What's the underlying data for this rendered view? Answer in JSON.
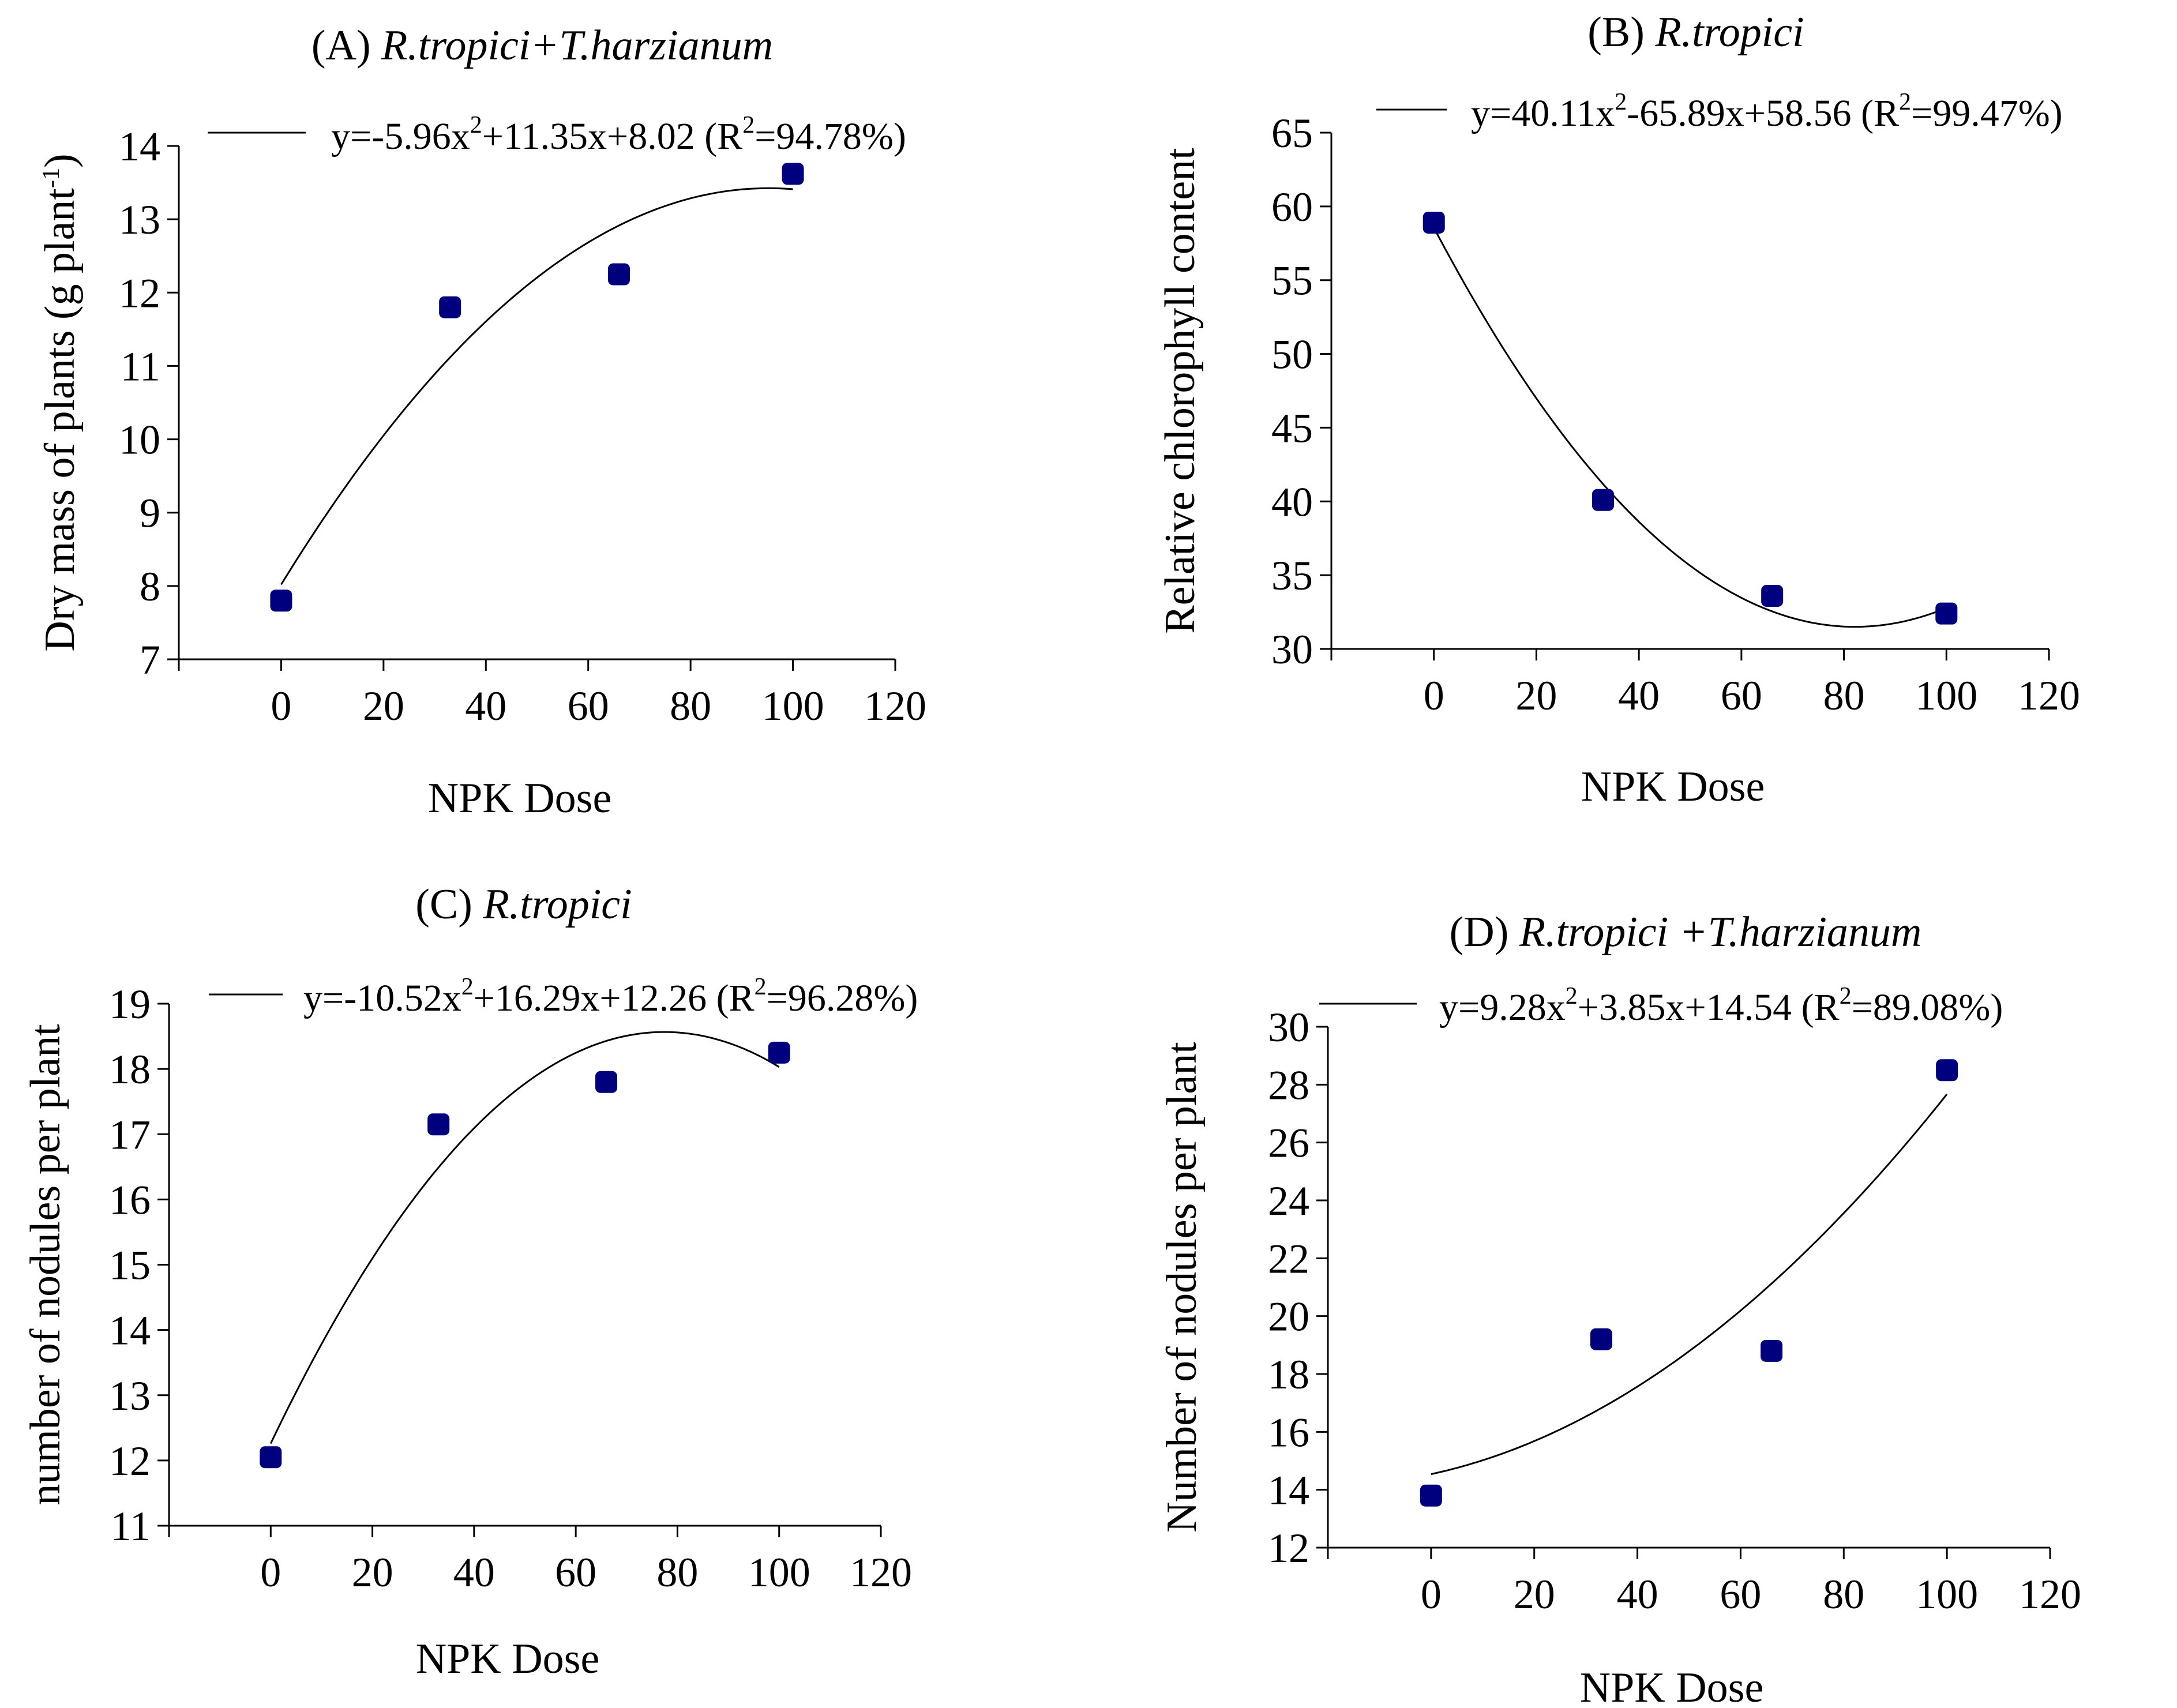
{
  "chart_data": [
    {
      "type": "scatter",
      "title_prefix": "(A) ",
      "title_italic": "R.tropici+T.harzianum",
      "xlabel": "NPK Dose",
      "ylabel_main": "Dry mass of plants (g plant",
      "ylabel_sup": "-1",
      "ylabel_end": ")",
      "xlim": [
        -20,
        120
      ],
      "ylim": [
        7,
        14
      ],
      "xticks": [
        0,
        20,
        40,
        60,
        80,
        100,
        120
      ],
      "yticks": [
        7,
        8,
        9,
        10,
        11,
        12,
        13,
        14
      ],
      "x": [
        0,
        33,
        66,
        100
      ],
      "y": [
        7.8,
        11.8,
        12.25,
        13.62
      ],
      "fit": {
        "a": -5.96,
        "b": 11.35,
        "c": 8.02,
        "x_scale": 100
      },
      "equation": {
        "a": "y=-5.96x",
        "sup1": "2",
        "b": "+11.35x+8.02 (R",
        "sup2": "2",
        "c": "=94.78%)"
      },
      "marker_color": "#00007f",
      "line_color": "#000000"
    },
    {
      "type": "scatter",
      "title_prefix": "(B) ",
      "title_italic": "R.tropici",
      "xlabel": "NPK Dose",
      "ylabel_main": "Relative chlorophyll content",
      "ylabel_sup": "",
      "ylabel_end": "",
      "xlim": [
        -20,
        120
      ],
      "ylim": [
        30,
        65
      ],
      "xticks": [
        0,
        20,
        40,
        60,
        80,
        100,
        120
      ],
      "yticks": [
        30,
        35,
        40,
        45,
        50,
        55,
        60,
        65
      ],
      "x": [
        0,
        33,
        66,
        100
      ],
      "y": [
        58.9,
        40.1,
        33.6,
        32.4
      ],
      "fit": {
        "a": 40.11,
        "b": -65.89,
        "c": 58.56,
        "x_scale": 100
      },
      "equation": {
        "a": "y=40.11x",
        "sup1": "2",
        "b": "-65.89x+58.56 (R",
        "sup2": "2",
        "c": "=99.47%)"
      },
      "marker_color": "#00007f",
      "line_color": "#000000"
    },
    {
      "type": "scatter",
      "title_prefix": "(C) ",
      "title_italic": "R.tropici",
      "xlabel": "NPK Dose",
      "ylabel_main": "number of nodules per plant",
      "ylabel_sup": "",
      "ylabel_end": "",
      "xlim": [
        -20,
        120
      ],
      "ylim": [
        11,
        19
      ],
      "xticks": [
        0,
        20,
        40,
        60,
        80,
        100,
        120
      ],
      "yticks": [
        11,
        12,
        13,
        14,
        15,
        16,
        17,
        18,
        19
      ],
      "x": [
        0,
        33,
        66,
        100
      ],
      "y": [
        12.05,
        17.15,
        17.8,
        18.25
      ],
      "fit": {
        "a": -10.52,
        "b": 16.29,
        "c": 12.26,
        "x_scale": 100
      },
      "equation": {
        "a": "y=-10.52x",
        "sup1": "2",
        "b": "+16.29x+12.26 (R",
        "sup2": "2",
        "c": "=96.28%)"
      },
      "marker_color": "#00007f",
      "line_color": "#000000"
    },
    {
      "type": "scatter",
      "title_prefix": "(D) ",
      "title_italic": "R.tropici +T.harzianum",
      "xlabel": "NPK Dose",
      "ylabel_main": "Number of nodules per plant",
      "ylabel_sup": "",
      "ylabel_end": "",
      "xlim": [
        -20,
        120
      ],
      "ylim": [
        12,
        30
      ],
      "xticks": [
        0,
        20,
        40,
        60,
        80,
        100,
        120
      ],
      "yticks": [
        12,
        14,
        16,
        18,
        20,
        22,
        24,
        26,
        28,
        30
      ],
      "x": [
        0,
        33,
        66,
        100
      ],
      "y": [
        13.8,
        19.2,
        18.8,
        28.5
      ],
      "fit": {
        "a": 9.28,
        "b": 3.85,
        "c": 14.54,
        "x_scale": 100
      },
      "equation": {
        "a": "y=9.28x",
        "sup1": "2",
        "b": "+3.85x+14.54 (R",
        "sup2": "2",
        "c": "=89.08%)"
      },
      "marker_color": "#00007f",
      "line_color": "#000000"
    }
  ]
}
